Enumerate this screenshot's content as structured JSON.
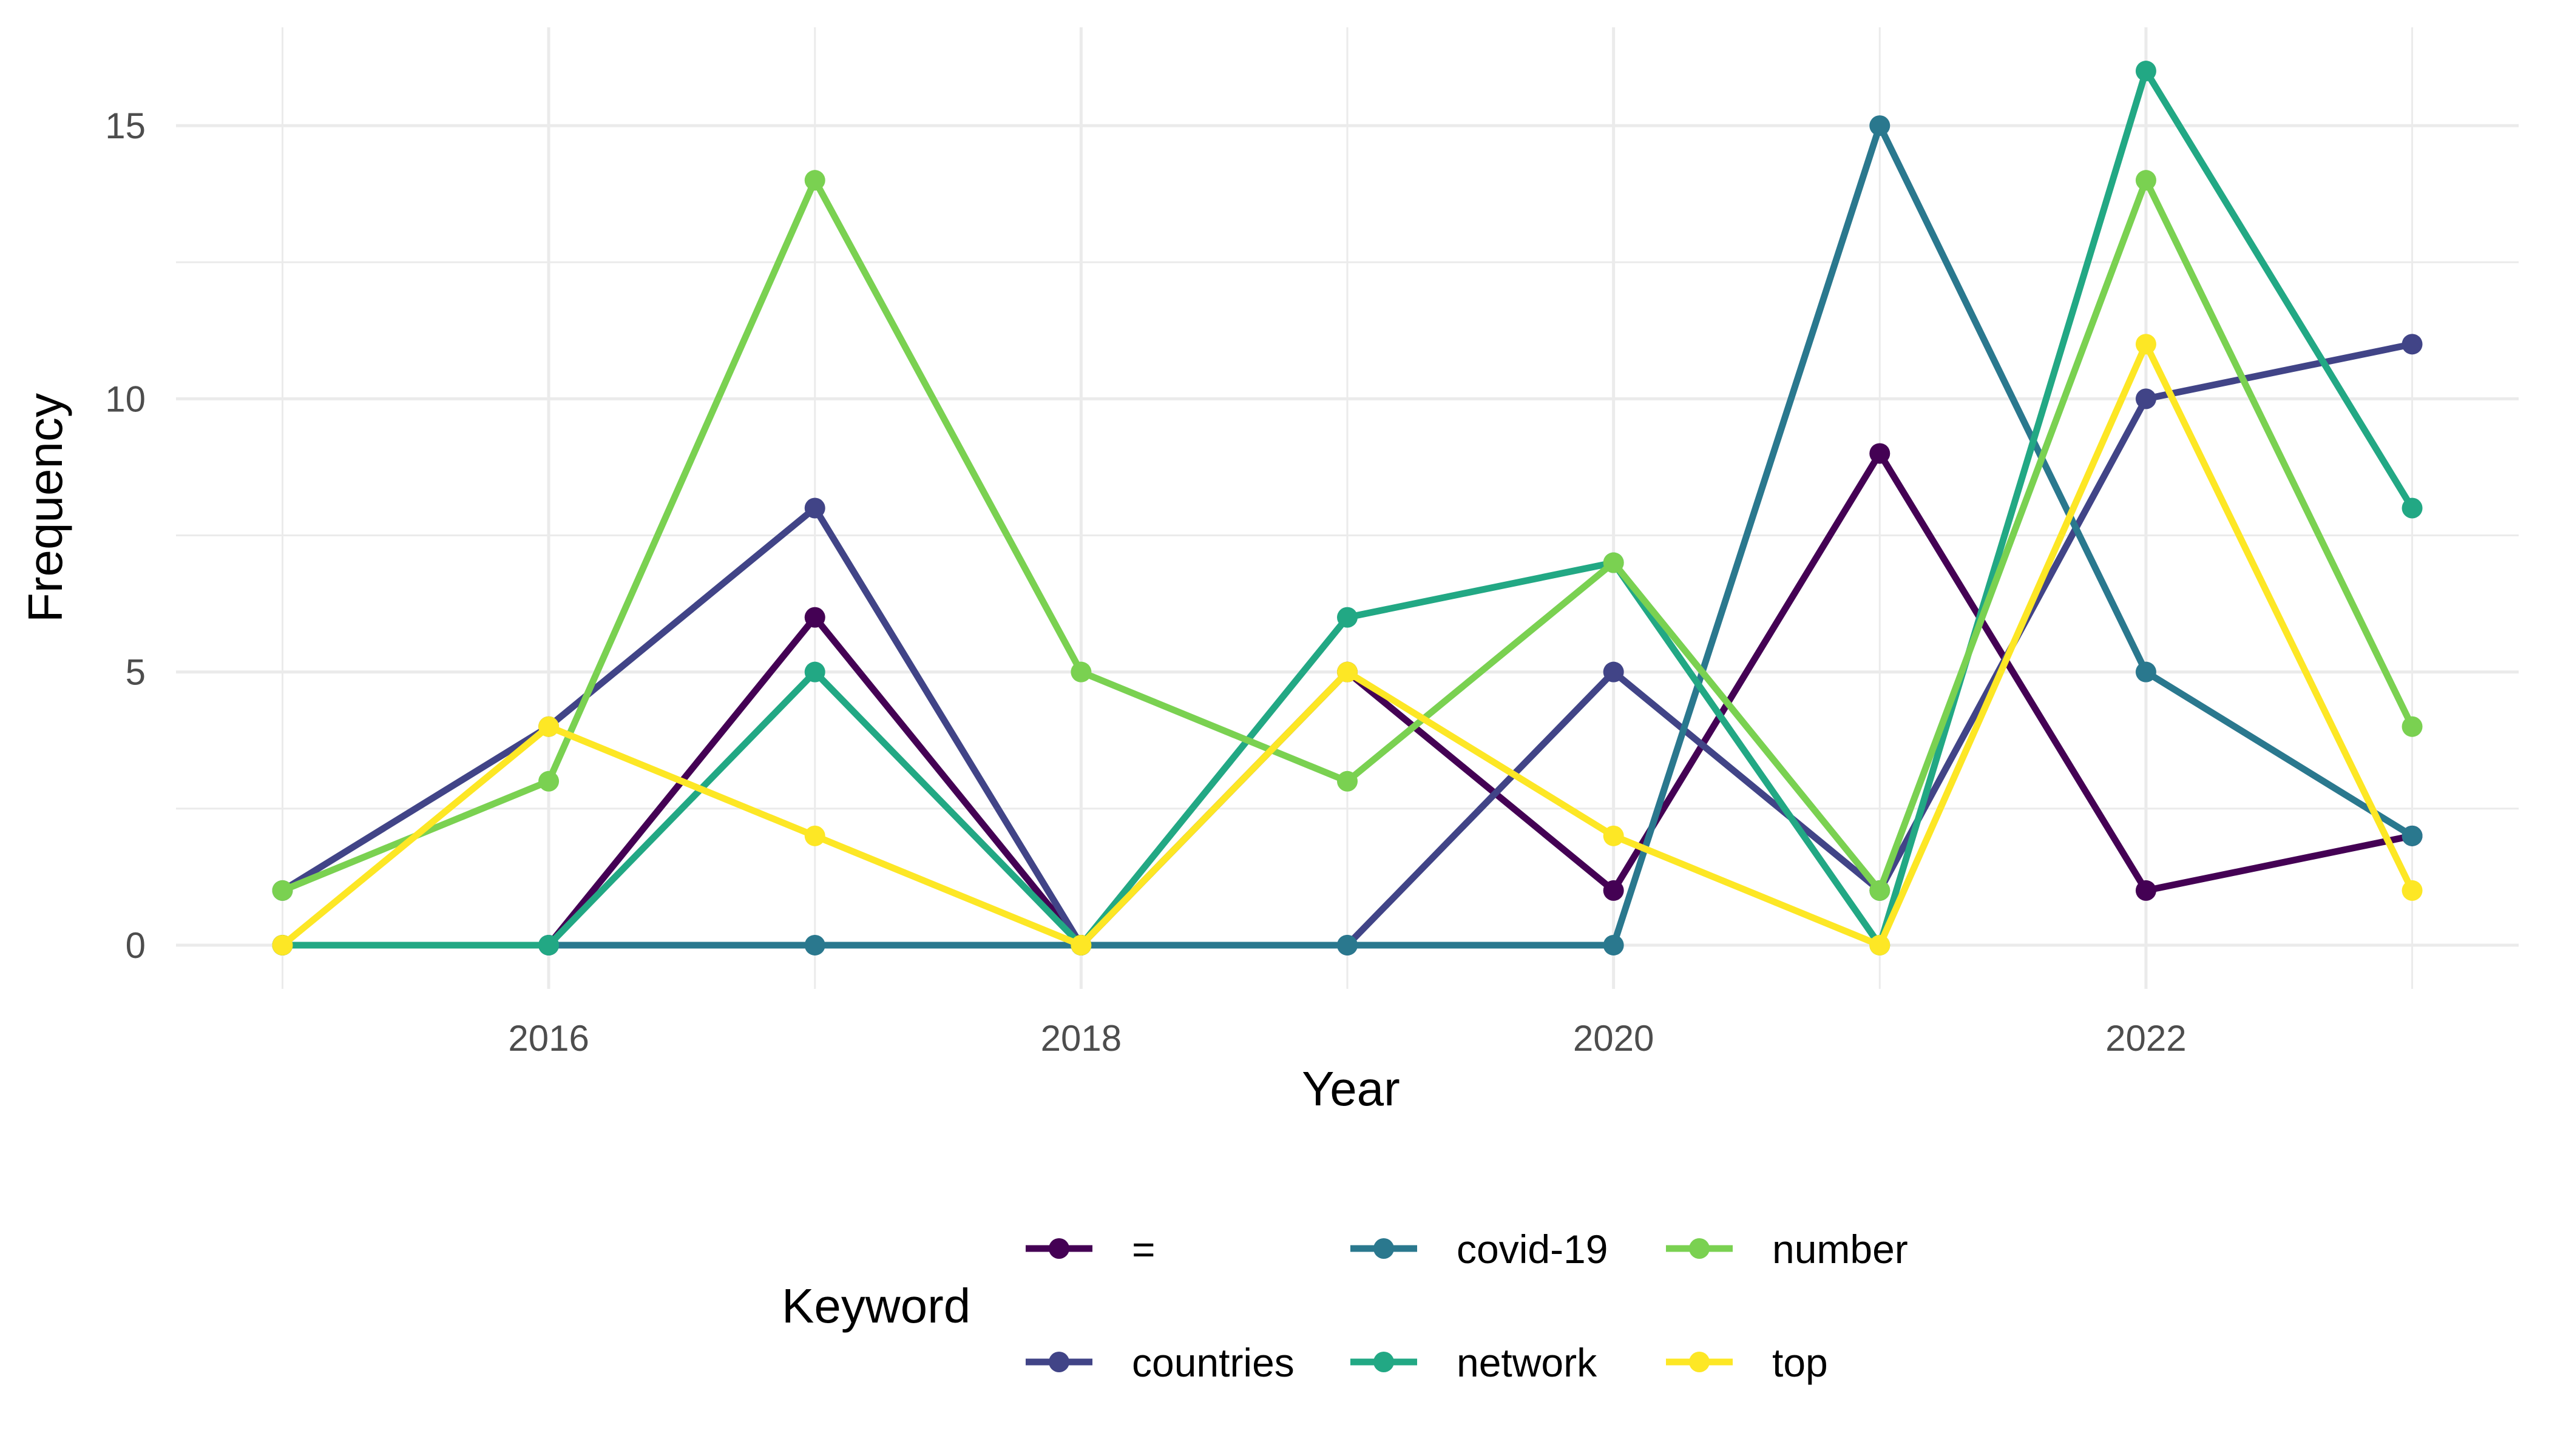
{
  "chart_data": {
    "type": "line",
    "title": "",
    "xlabel": "Year",
    "ylabel": "Frequency",
    "x": [
      2015,
      2016,
      2017,
      2018,
      2019,
      2020,
      2021,
      2022,
      2023
    ],
    "xlim": [
      2014.6,
      2023.4
    ],
    "ylim": [
      -0.8,
      16.8
    ],
    "x_ticks": [
      2016,
      2018,
      2020,
      2022
    ],
    "y_ticks": [
      0,
      5,
      10,
      15
    ],
    "grid": true,
    "legend": {
      "title": "Keyword",
      "position": "bottom"
    },
    "series": [
      {
        "name": "=",
        "color": "#440154",
        "values": [
          0,
          0,
          6,
          0,
          5,
          1,
          9,
          1,
          2
        ]
      },
      {
        "name": "countries",
        "color": "#414487",
        "values": [
          1,
          4,
          8,
          0,
          0,
          5,
          1,
          10,
          11
        ]
      },
      {
        "name": "covid-19",
        "color": "#2A788E",
        "values": [
          0,
          0,
          0,
          0,
          0,
          0,
          15,
          5,
          2
        ]
      },
      {
        "name": "network",
        "color": "#22A884",
        "values": [
          0,
          0,
          5,
          0,
          6,
          7,
          0,
          16,
          8
        ]
      },
      {
        "name": "number",
        "color": "#7AD151",
        "values": [
          1,
          3,
          14,
          5,
          3,
          7,
          1,
          14,
          4
        ]
      },
      {
        "name": "top",
        "color": "#FDE725",
        "values": [
          0,
          4,
          2,
          0,
          5,
          2,
          0,
          11,
          1
        ]
      }
    ]
  }
}
